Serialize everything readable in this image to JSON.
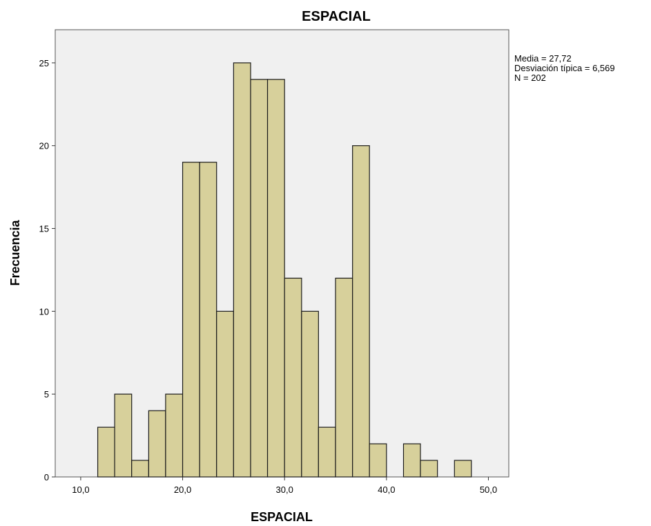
{
  "chart_data": {
    "type": "bar",
    "subtype": "histogram",
    "title": "ESPACIAL",
    "xlabel": "ESPACIAL",
    "ylabel": "Frecuencia",
    "xlim": [
      7.5,
      52.0
    ],
    "ylim": [
      0,
      27
    ],
    "x_ticks": [
      10.0,
      20.0,
      30.0,
      40.0,
      50.0
    ],
    "x_tick_labels": [
      "10,0",
      "20,0",
      "30,0",
      "40,0",
      "50,0"
    ],
    "y_ticks": [
      0,
      5,
      10,
      15,
      20,
      25
    ],
    "y_tick_labels": [
      "0",
      "5",
      "10",
      "15",
      "20",
      "25"
    ],
    "bin_width": 1.667,
    "bins": [
      {
        "start": 11.67,
        "end": 13.33,
        "count": 3
      },
      {
        "start": 13.33,
        "end": 15.0,
        "count": 5
      },
      {
        "start": 15.0,
        "end": 16.67,
        "count": 1
      },
      {
        "start": 16.67,
        "end": 18.33,
        "count": 4
      },
      {
        "start": 18.33,
        "end": 20.0,
        "count": 5
      },
      {
        "start": 20.0,
        "end": 21.67,
        "count": 19
      },
      {
        "start": 21.67,
        "end": 23.33,
        "count": 19
      },
      {
        "start": 23.33,
        "end": 25.0,
        "count": 10
      },
      {
        "start": 25.0,
        "end": 26.67,
        "count": 25
      },
      {
        "start": 26.67,
        "end": 28.33,
        "count": 24
      },
      {
        "start": 28.33,
        "end": 30.0,
        "count": 24
      },
      {
        "start": 30.0,
        "end": 31.67,
        "count": 12
      },
      {
        "start": 31.67,
        "end": 33.33,
        "count": 10
      },
      {
        "start": 33.33,
        "end": 35.0,
        "count": 3
      },
      {
        "start": 35.0,
        "end": 36.67,
        "count": 12
      },
      {
        "start": 36.67,
        "end": 38.33,
        "count": 20
      },
      {
        "start": 38.33,
        "end": 40.0,
        "count": 2
      },
      {
        "start": 40.0,
        "end": 41.67,
        "count": 0
      },
      {
        "start": 41.67,
        "end": 43.33,
        "count": 2
      },
      {
        "start": 43.33,
        "end": 45.0,
        "count": 1
      },
      {
        "start": 45.0,
        "end": 46.67,
        "count": 0
      },
      {
        "start": 46.67,
        "end": 48.33,
        "count": 1
      }
    ],
    "stats": {
      "mean": "Media = 27,72",
      "std": "Desviación típica = 6,569",
      "n": "N = 202"
    },
    "stats_placement": "top-right, outside plot",
    "grid": false,
    "colors": {
      "bar_fill": "#d7d09b",
      "bar_stroke": "#1a1a1a",
      "plot_background": "#f0f0f0",
      "frame": "#555555"
    }
  }
}
